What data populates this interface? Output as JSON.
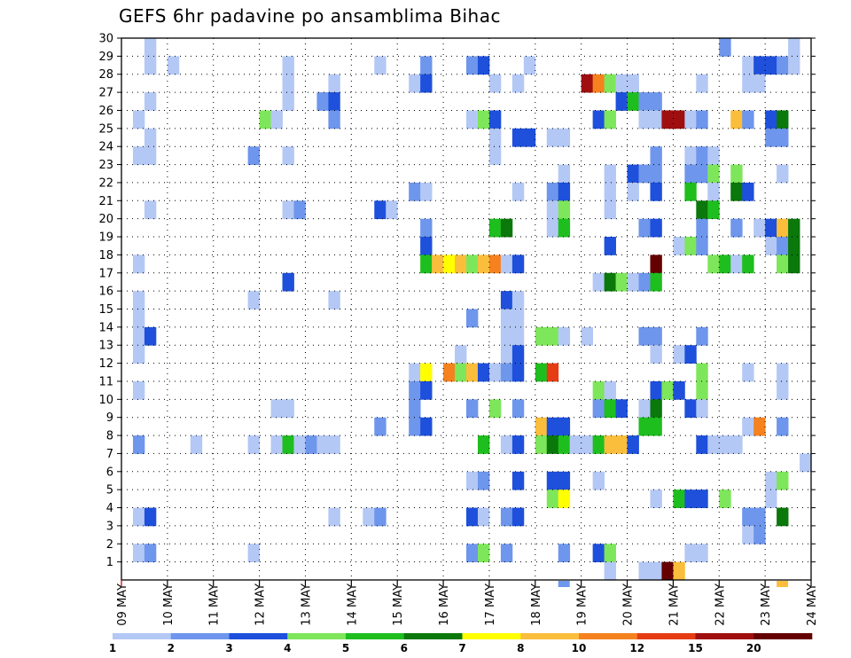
{
  "chart_data": {
    "type": "heatmap",
    "title": "GEFS 6hr padavine po ansamblima Bihac",
    "x_tick_labels": [
      "09 MAY",
      "10 MAY",
      "11 MAY",
      "12 MAY",
      "13 MAY",
      "14 MAY",
      "15 MAY",
      "16 MAY",
      "17 MAY",
      "18 MAY",
      "19 MAY",
      "20 MAY",
      "21 MAY",
      "22 MAY",
      "23 MAY",
      "24 MAY"
    ],
    "y_tick_labels": [
      "1",
      "2",
      "3",
      "4",
      "5",
      "6",
      "7",
      "8",
      "9",
      "10",
      "11",
      "12",
      "13",
      "14",
      "15",
      "16",
      "17",
      "18",
      "19",
      "20",
      "21",
      "22",
      "23",
      "24",
      "25",
      "26",
      "27",
      "28",
      "29",
      "30"
    ],
    "ylim": [
      0,
      30
    ],
    "steps_per_day": 4,
    "grid": "dotted",
    "colorbar": {
      "labels": [
        "1",
        "2",
        "3",
        "4",
        "5",
        "6",
        "7",
        "8",
        "10",
        "12",
        "15",
        "20"
      ],
      "colors": [
        "#b4c8f5",
        "#6e96ec",
        "#1e50dc",
        "#7ee65a",
        "#1ebe1e",
        "#0a780a",
        "#ffff00",
        "#fabe3c",
        "#f5821e",
        "#e63c14",
        "#a00f0f",
        "#640000"
      ]
    },
    "cells": [
      [
        30,
        0.5,
        1
      ],
      [
        30,
        13,
        2
      ],
      [
        30,
        14.5,
        1
      ],
      [
        29,
        0.5,
        1
      ],
      [
        29,
        1,
        1
      ],
      [
        29,
        3.5,
        1
      ],
      [
        29,
        5.5,
        1
      ],
      [
        29,
        6.5,
        2
      ],
      [
        29,
        7.5,
        2
      ],
      [
        29,
        7.75,
        3
      ],
      [
        29,
        8.75,
        1
      ],
      [
        29,
        13.5,
        1
      ],
      [
        29,
        13.75,
        3
      ],
      [
        29,
        14,
        3
      ],
      [
        29,
        14.25,
        2
      ],
      [
        29,
        14.5,
        1
      ],
      [
        28,
        3.5,
        1
      ],
      [
        28,
        4.5,
        1
      ],
      [
        28,
        6.25,
        1
      ],
      [
        28,
        6.5,
        3
      ],
      [
        28,
        8,
        1
      ],
      [
        28,
        8.5,
        1
      ],
      [
        28,
        10,
        11
      ],
      [
        28,
        10.25,
        9
      ],
      [
        28,
        10.5,
        4
      ],
      [
        28,
        10.75,
        1
      ],
      [
        28,
        11,
        1
      ],
      [
        28,
        12.5,
        1
      ],
      [
        28,
        13.5,
        1
      ],
      [
        28,
        13.75,
        1
      ],
      [
        27,
        0.5,
        1
      ],
      [
        27,
        3.5,
        1
      ],
      [
        27,
        4.25,
        2
      ],
      [
        27,
        4.5,
        3
      ],
      [
        27,
        10.75,
        3
      ],
      [
        27,
        11,
        5
      ],
      [
        27,
        11.25,
        2
      ],
      [
        27,
        11.5,
        2
      ],
      [
        26,
        0.25,
        1
      ],
      [
        26,
        3,
        4
      ],
      [
        26,
        3.25,
        1
      ],
      [
        26,
        4.5,
        2
      ],
      [
        26,
        7.5,
        1
      ],
      [
        26,
        7.75,
        4
      ],
      [
        26,
        8,
        3
      ],
      [
        26,
        10.25,
        3
      ],
      [
        26,
        10.5,
        4
      ],
      [
        26,
        11.25,
        1
      ],
      [
        26,
        11.5,
        1
      ],
      [
        26,
        11.75,
        11
      ],
      [
        26,
        12,
        11
      ],
      [
        26,
        12.25,
        1
      ],
      [
        26,
        12.5,
        2
      ],
      [
        26,
        13.25,
        8
      ],
      [
        26,
        13.5,
        2
      ],
      [
        26,
        14,
        3
      ],
      [
        26,
        14.25,
        6
      ],
      [
        25,
        0.5,
        1
      ],
      [
        25,
        8,
        1
      ],
      [
        25,
        8.5,
        3
      ],
      [
        25,
        8.75,
        3
      ],
      [
        25,
        9.25,
        1
      ],
      [
        25,
        9.5,
        1
      ],
      [
        25,
        14,
        2
      ],
      [
        25,
        14.25,
        2
      ],
      [
        24,
        0.25,
        1
      ],
      [
        24,
        0.5,
        1
      ],
      [
        24,
        2.75,
        2
      ],
      [
        24,
        3.5,
        1
      ],
      [
        24,
        8,
        1
      ],
      [
        24,
        11.5,
        2
      ],
      [
        24,
        12.25,
        1
      ],
      [
        24,
        12.5,
        2
      ],
      [
        24,
        12.75,
        1
      ],
      [
        23,
        9.5,
        1
      ],
      [
        23,
        10.5,
        1
      ],
      [
        23,
        11,
        3
      ],
      [
        23,
        11.25,
        2
      ],
      [
        23,
        11.5,
        2
      ],
      [
        23,
        12.25,
        2
      ],
      [
        23,
        12.5,
        2
      ],
      [
        23,
        12.75,
        4
      ],
      [
        23,
        13.25,
        4
      ],
      [
        23,
        14.25,
        1
      ],
      [
        22,
        6.25,
        2
      ],
      [
        22,
        6.5,
        1
      ],
      [
        22,
        8.5,
        1
      ],
      [
        22,
        9.25,
        2
      ],
      [
        22,
        9.5,
        3
      ],
      [
        22,
        10.5,
        1
      ],
      [
        22,
        11,
        1
      ],
      [
        22,
        11.5,
        3
      ],
      [
        22,
        12.25,
        5
      ],
      [
        22,
        12.75,
        1
      ],
      [
        22,
        13.25,
        6
      ],
      [
        22,
        13.5,
        3
      ],
      [
        21,
        0.5,
        1
      ],
      [
        21,
        3.5,
        1
      ],
      [
        21,
        3.75,
        2
      ],
      [
        21,
        5.5,
        3
      ],
      [
        21,
        5.75,
        1
      ],
      [
        21,
        9.25,
        1
      ],
      [
        21,
        9.5,
        4
      ],
      [
        21,
        10.5,
        1
      ],
      [
        21,
        12.5,
        6
      ],
      [
        21,
        12.75,
        5
      ],
      [
        20,
        6.5,
        2
      ],
      [
        20,
        8,
        5
      ],
      [
        20,
        8.25,
        6
      ],
      [
        20,
        9.25,
        1
      ],
      [
        20,
        9.5,
        5
      ],
      [
        20,
        11.25,
        2
      ],
      [
        20,
        11.5,
        3
      ],
      [
        20,
        12.5,
        2
      ],
      [
        20,
        13.25,
        2
      ],
      [
        20,
        13.75,
        1
      ],
      [
        20,
        14,
        3
      ],
      [
        20,
        14.25,
        8
      ],
      [
        20,
        14.5,
        6
      ],
      [
        19,
        6.5,
        3
      ],
      [
        19,
        10.5,
        3
      ],
      [
        19,
        12,
        1
      ],
      [
        19,
        12.25,
        4
      ],
      [
        19,
        12.5,
        2
      ],
      [
        19,
        14,
        1
      ],
      [
        19,
        14.25,
        2
      ],
      [
        19,
        14.5,
        6
      ],
      [
        18,
        0.25,
        1
      ],
      [
        18,
        6.5,
        5
      ],
      [
        18,
        6.75,
        8
      ],
      [
        18,
        7,
        7
      ],
      [
        18,
        7.25,
        8
      ],
      [
        18,
        7.5,
        4
      ],
      [
        18,
        7.75,
        8
      ],
      [
        18,
        8,
        9
      ],
      [
        18,
        8.25,
        1
      ],
      [
        18,
        8.5,
        3
      ],
      [
        18,
        11.5,
        12
      ],
      [
        18,
        12.75,
        4
      ],
      [
        18,
        13,
        5
      ],
      [
        18,
        13.25,
        1
      ],
      [
        18,
        13.5,
        5
      ],
      [
        18,
        14.25,
        4
      ],
      [
        18,
        14.5,
        6
      ],
      [
        17,
        3.5,
        3
      ],
      [
        17,
        10.25,
        1
      ],
      [
        17,
        10.5,
        6
      ],
      [
        17,
        10.75,
        4
      ],
      [
        17,
        11,
        1
      ],
      [
        17,
        11.25,
        2
      ],
      [
        17,
        11.5,
        5
      ],
      [
        16,
        0.25,
        1
      ],
      [
        16,
        2.75,
        1
      ],
      [
        16,
        4.5,
        1
      ],
      [
        16,
        8.25,
        3
      ],
      [
        16,
        8.5,
        1
      ],
      [
        15,
        0.25,
        1
      ],
      [
        15,
        7.5,
        2
      ],
      [
        15,
        8.25,
        1
      ],
      [
        15,
        8.5,
        1
      ],
      [
        14,
        0.25,
        1
      ],
      [
        14,
        0.5,
        3
      ],
      [
        14,
        8.25,
        1
      ],
      [
        14,
        8.5,
        1
      ],
      [
        14,
        9,
        4
      ],
      [
        14,
        9.25,
        4
      ],
      [
        14,
        9.5,
        1
      ],
      [
        14,
        10,
        1
      ],
      [
        14,
        11.25,
        2
      ],
      [
        14,
        11.5,
        2
      ],
      [
        14,
        12.5,
        2
      ],
      [
        13,
        0.25,
        1
      ],
      [
        13,
        7.25,
        1
      ],
      [
        13,
        8.25,
        1
      ],
      [
        13,
        8.5,
        3
      ],
      [
        13,
        11.5,
        1
      ],
      [
        13,
        12,
        1
      ],
      [
        13,
        12.25,
        3
      ],
      [
        12,
        6.25,
        1
      ],
      [
        12,
        6.5,
        7
      ],
      [
        12,
        7,
        9
      ],
      [
        12,
        7.25,
        4
      ],
      [
        12,
        7.5,
        8
      ],
      [
        12,
        7.75,
        3
      ],
      [
        12,
        8,
        1
      ],
      [
        12,
        8.25,
        2
      ],
      [
        12,
        8.5,
        3
      ],
      [
        12,
        9,
        5
      ],
      [
        12,
        9.25,
        10
      ],
      [
        12,
        12.5,
        4
      ],
      [
        12,
        13.5,
        1
      ],
      [
        12,
        14.25,
        1
      ],
      [
        11,
        0.25,
        1
      ],
      [
        11,
        6.25,
        2
      ],
      [
        11,
        6.5,
        3
      ],
      [
        11,
        10.25,
        4
      ],
      [
        11,
        10.5,
        1
      ],
      [
        11,
        11.5,
        3
      ],
      [
        11,
        11.75,
        4
      ],
      [
        11,
        12,
        3
      ],
      [
        11,
        12.5,
        4
      ],
      [
        11,
        14.25,
        1
      ],
      [
        10,
        3.25,
        1
      ],
      [
        10,
        3.5,
        1
      ],
      [
        10,
        6.25,
        2
      ],
      [
        10,
        7.5,
        2
      ],
      [
        10,
        8,
        4
      ],
      [
        10,
        8.5,
        2
      ],
      [
        10,
        10.25,
        2
      ],
      [
        10,
        10.5,
        5
      ],
      [
        10,
        10.75,
        3
      ],
      [
        10,
        11.25,
        1
      ],
      [
        10,
        11.5,
        6
      ],
      [
        10,
        12.25,
        3
      ],
      [
        10,
        12.5,
        1
      ],
      [
        9,
        5.5,
        2
      ],
      [
        9,
        6.25,
        2
      ],
      [
        9,
        6.5,
        3
      ],
      [
        9,
        9,
        8
      ],
      [
        9,
        9.25,
        3
      ],
      [
        9,
        9.5,
        3
      ],
      [
        9,
        11.25,
        5
      ],
      [
        9,
        11.5,
        5
      ],
      [
        9,
        13.5,
        1
      ],
      [
        9,
        13.75,
        9
      ],
      [
        9,
        14.25,
        2
      ],
      [
        8,
        0.25,
        2
      ],
      [
        8,
        1.5,
        1
      ],
      [
        8,
        2.75,
        1
      ],
      [
        8,
        3.25,
        1
      ],
      [
        8,
        3.5,
        5
      ],
      [
        8,
        3.75,
        1
      ],
      [
        8,
        4,
        2
      ],
      [
        8,
        4.25,
        1
      ],
      [
        8,
        4.5,
        1
      ],
      [
        8,
        7.75,
        5
      ],
      [
        8,
        8.25,
        1
      ],
      [
        8,
        8.5,
        3
      ],
      [
        8,
        9,
        4
      ],
      [
        8,
        9.25,
        6
      ],
      [
        8,
        9.5,
        5
      ],
      [
        8,
        9.75,
        1
      ],
      [
        8,
        10,
        1
      ],
      [
        8,
        10.25,
        5
      ],
      [
        8,
        10.5,
        8
      ],
      [
        8,
        10.75,
        8
      ],
      [
        8,
        11,
        3
      ],
      [
        8,
        12.5,
        3
      ],
      [
        8,
        12.75,
        1
      ],
      [
        8,
        13,
        1
      ],
      [
        8,
        13.25,
        1
      ],
      [
        7,
        14.75,
        1
      ],
      [
        6,
        7.5,
        1
      ],
      [
        6,
        7.75,
        2
      ],
      [
        6,
        8.5,
        3
      ],
      [
        6,
        9.25,
        3
      ],
      [
        6,
        9.5,
        3
      ],
      [
        6,
        10.25,
        1
      ],
      [
        6,
        14,
        1
      ],
      [
        6,
        14.25,
        4
      ],
      [
        5,
        9.25,
        4
      ],
      [
        5,
        9.5,
        7
      ],
      [
        5,
        11.5,
        1
      ],
      [
        5,
        12,
        5
      ],
      [
        5,
        12.25,
        3
      ],
      [
        5,
        12.5,
        3
      ],
      [
        5,
        13,
        4
      ],
      [
        5,
        14,
        1
      ],
      [
        4,
        0.25,
        1
      ],
      [
        4,
        0.5,
        3
      ],
      [
        4,
        4.5,
        1
      ],
      [
        4,
        5.25,
        1
      ],
      [
        4,
        5.5,
        2
      ],
      [
        4,
        7.5,
        3
      ],
      [
        4,
        7.75,
        1
      ],
      [
        4,
        8.25,
        2
      ],
      [
        4,
        8.5,
        3
      ],
      [
        4,
        13.5,
        2
      ],
      [
        4,
        13.75,
        2
      ],
      [
        4,
        14.25,
        6
      ],
      [
        3,
        13.5,
        1
      ],
      [
        3,
        13.75,
        2
      ],
      [
        2,
        0.25,
        1
      ],
      [
        2,
        0.5,
        2
      ],
      [
        2,
        2.75,
        1
      ],
      [
        2,
        7.5,
        2
      ],
      [
        2,
        7.75,
        4
      ],
      [
        2,
        8.25,
        2
      ],
      [
        2,
        9.5,
        2
      ],
      [
        2,
        10.25,
        3
      ],
      [
        2,
        10.5,
        4
      ],
      [
        2,
        12.25,
        1
      ],
      [
        2,
        12.5,
        1
      ],
      [
        1,
        10.5,
        1
      ],
      [
        1,
        11.25,
        1
      ],
      [
        1,
        11.5,
        1
      ],
      [
        1,
        11.75,
        12
      ],
      [
        1,
        12,
        8
      ]
    ],
    "bottom_strip": [
      [
        9.5,
        2
      ],
      [
        14.25,
        8
      ]
    ]
  }
}
